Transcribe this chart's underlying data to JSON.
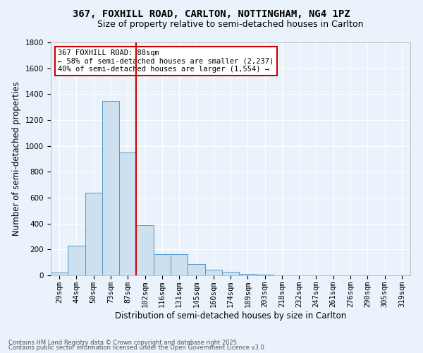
{
  "title": "367, FOXHILL ROAD, CARLTON, NOTTINGHAM, NG4 1PZ",
  "subtitle": "Size of property relative to semi-detached houses in Carlton",
  "xlabel": "Distribution of semi-detached houses by size in Carlton",
  "ylabel": "Number of semi-detached properties",
  "bin_labels": [
    "29sqm",
    "44sqm",
    "58sqm",
    "73sqm",
    "87sqm",
    "102sqm",
    "116sqm",
    "131sqm",
    "145sqm",
    "160sqm",
    "174sqm",
    "189sqm",
    "203sqm",
    "218sqm",
    "232sqm",
    "247sqm",
    "261sqm",
    "276sqm",
    "290sqm",
    "305sqm",
    "319sqm"
  ],
  "bin_values": [
    20,
    230,
    640,
    1350,
    950,
    390,
    165,
    165,
    85,
    45,
    25,
    10,
    5,
    2,
    1,
    1,
    0,
    0,
    0,
    0,
    0
  ],
  "bar_color": "#cce0f0",
  "bar_edge_color": "#5599cc",
  "vline_color": "#cc0000",
  "annotation_title": "367 FOXHILL ROAD: 88sqm",
  "annotation_line1": "← 58% of semi-detached houses are smaller (2,237)",
  "annotation_line2": "40% of semi-detached houses are larger (1,554) →",
  "annotation_box_color": "#cc0000",
  "annotation_fill": "#ffffff",
  "ylim": [
    0,
    1800
  ],
  "yticks": [
    0,
    200,
    400,
    600,
    800,
    1000,
    1200,
    1400,
    1600,
    1800
  ],
  "footnote1": "Contains HM Land Registry data © Crown copyright and database right 2025.",
  "footnote2": "Contains public sector information licensed under the Open Government Licence v3.0.",
  "bg_color": "#eaf2fb",
  "grid_color": "#ffffff",
  "title_fontsize": 10,
  "subtitle_fontsize": 9,
  "axis_label_fontsize": 8.5,
  "tick_fontsize": 7.5,
  "footnote_fontsize": 6,
  "annot_fontsize": 7.5,
  "vline_bin_index": 4,
  "n_bins": 21
}
